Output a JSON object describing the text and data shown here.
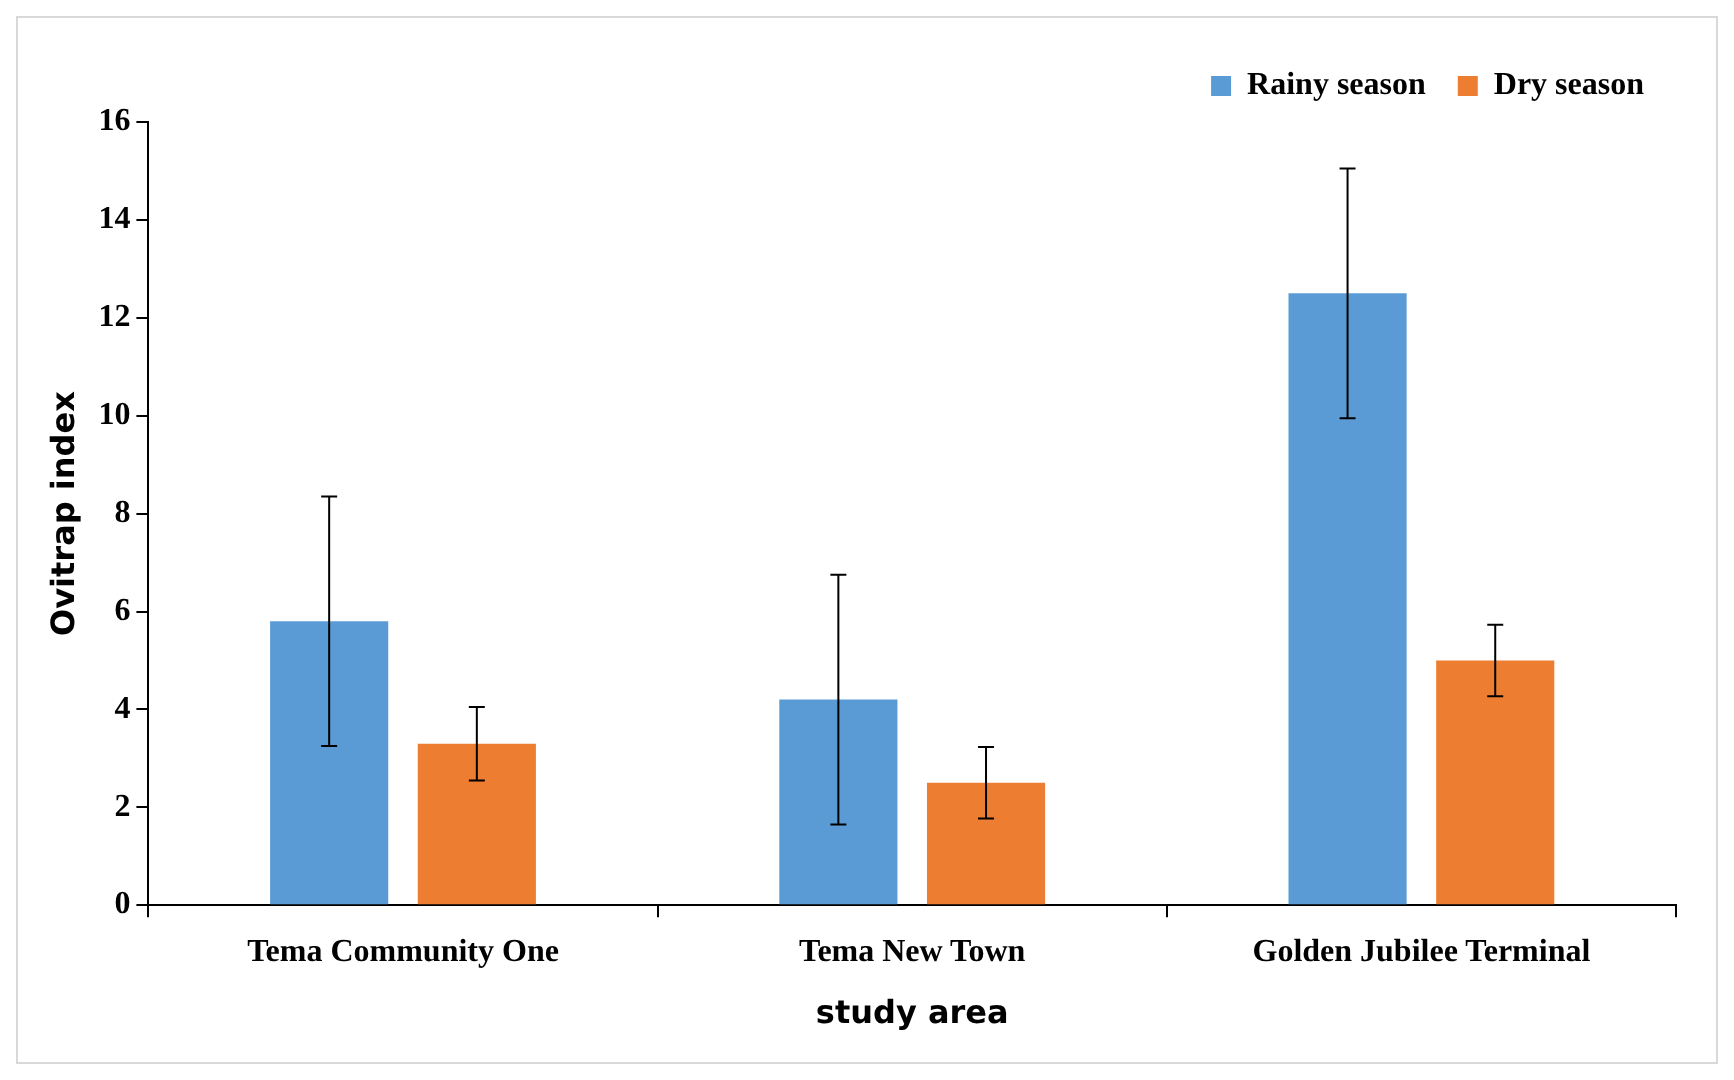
{
  "chart_data": {
    "type": "bar",
    "xlabel": "study area",
    "ylabel": "Ovitrap index",
    "categories": [
      "Tema Community One",
      "Tema New Town",
      "Golden Jubilee Terminal"
    ],
    "series": [
      {
        "name": "Rainy season",
        "color": "#5b9bd5",
        "values": [
          5.8,
          4.2,
          12.5
        ],
        "errors": [
          2.55,
          2.55,
          2.55
        ]
      },
      {
        "name": "Dry season",
        "color": "#ed7d31",
        "values": [
          3.3,
          2.5,
          5.0
        ],
        "errors": [
          0.75,
          0.73,
          0.73
        ]
      }
    ],
    "ylim": [
      0,
      16
    ],
    "yticks": [
      0,
      2,
      4,
      6,
      8,
      10,
      12,
      14,
      16
    ],
    "grid": false,
    "legend": "top right"
  }
}
